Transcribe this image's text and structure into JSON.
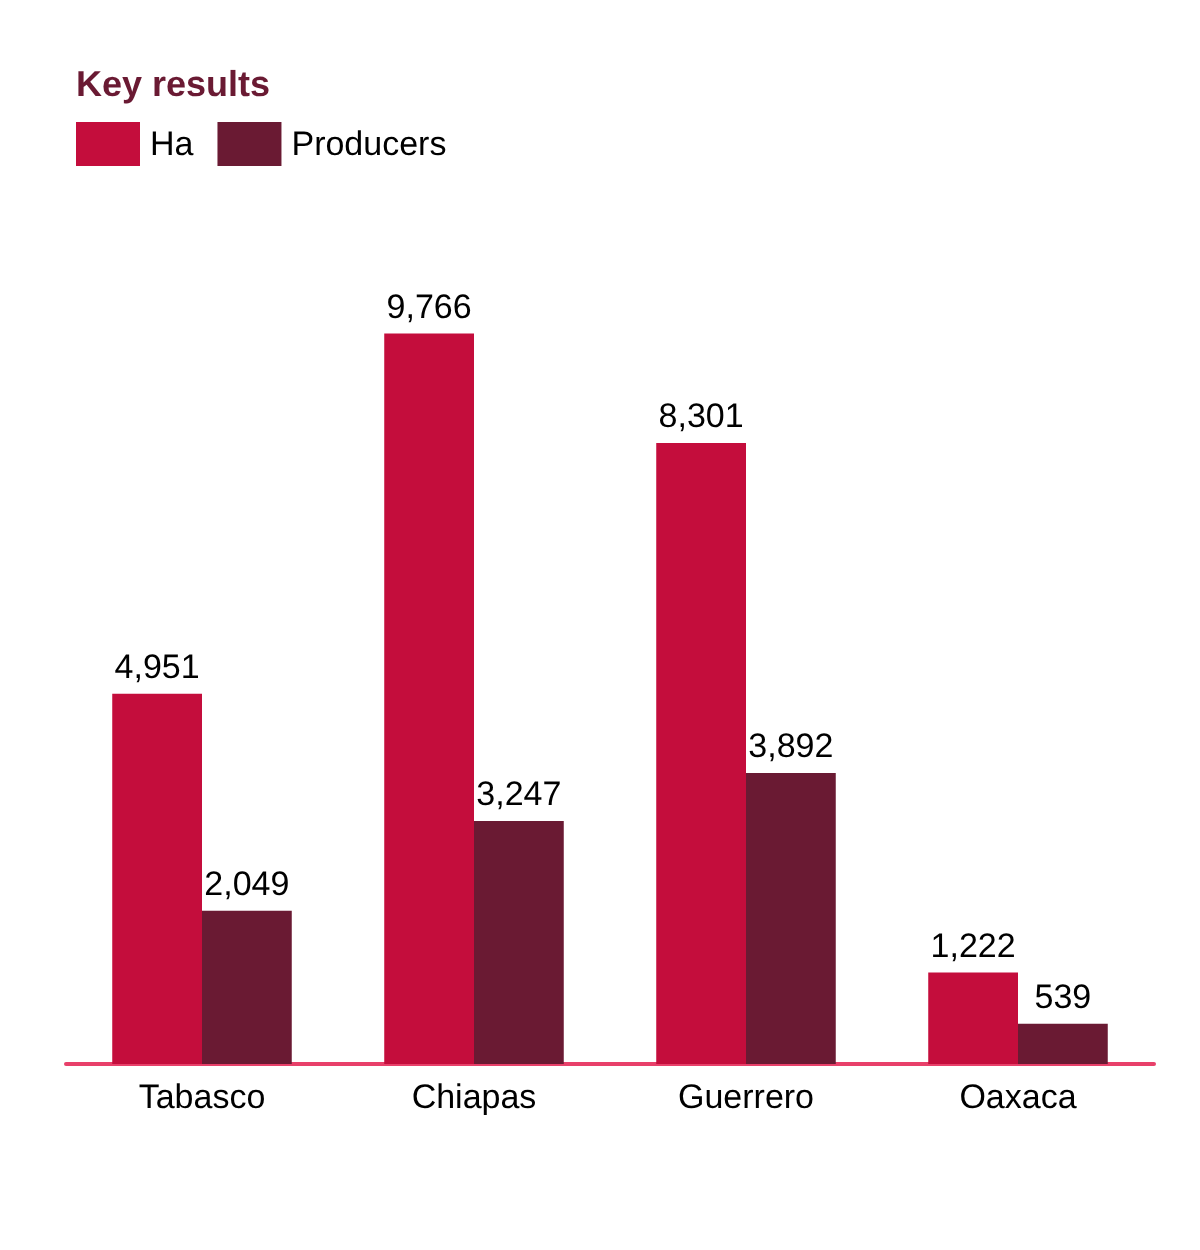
{
  "chart_data": {
    "type": "bar",
    "title": "Key results",
    "categories": [
      "Tabasco",
      "Chiapas",
      "Guerrero",
      "Oaxaca"
    ],
    "series": [
      {
        "name": "Ha",
        "color": "#c40d3c",
        "values": [
          4951,
          9766,
          8301,
          1222
        ],
        "value_labels": [
          "4,951",
          "9,766",
          "8,301",
          "1,222"
        ]
      },
      {
        "name": "Producers",
        "color": "#6a1a33",
        "values": [
          2049,
          3247,
          3892,
          539
        ],
        "value_labels": [
          "2,049",
          "3,247",
          "3,892",
          "539"
        ]
      }
    ],
    "legend": "top left"
  }
}
